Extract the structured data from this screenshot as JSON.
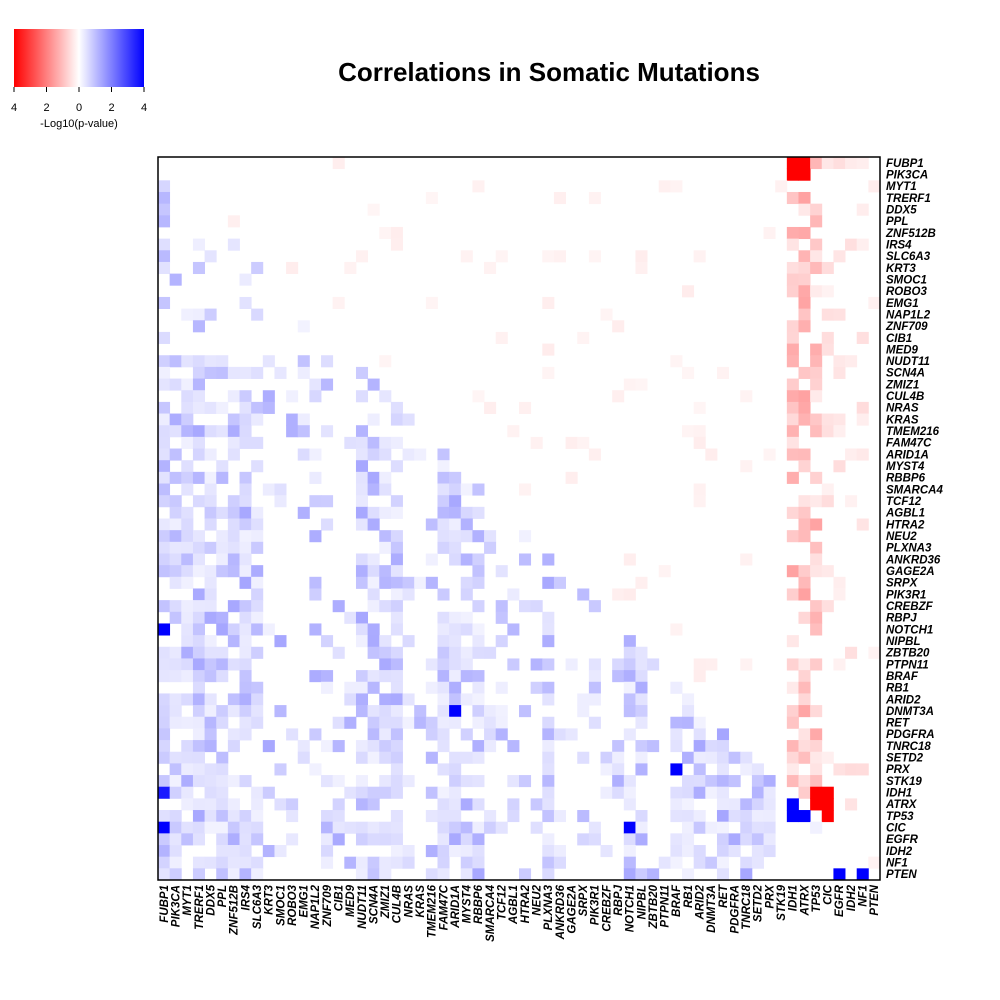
{
  "chart_data": {
    "type": "heatmap",
    "title": "Correlations in Somatic Mutations",
    "legend": {
      "title": "-Log10(p-value)",
      "ticks": [
        "4",
        "2",
        "0",
        "2",
        "4"
      ],
      "range": [
        -4,
        4
      ],
      "low_color": "#ff0000",
      "mid_color": "#ffffff",
      "high_color": "#0000ff",
      "placement": "top-left"
    },
    "genes": [
      "FUBP1",
      "PIK3CA",
      "MYT1",
      "TRERF1",
      "DDX5",
      "PPL",
      "ZNF512B",
      "IRS4",
      "SLC6A3",
      "KRT3",
      "SMOC1",
      "ROBO3",
      "EMG1",
      "NAP1L2",
      "ZNF709",
      "CIB1",
      "MED9",
      "NUDT11",
      "SCN4A",
      "ZMIZ1",
      "CUL4B",
      "NRAS",
      "KRAS",
      "TMEM216",
      "FAM47C",
      "ARID1A",
      "MYST4",
      "RBBP6",
      "SMARCA4",
      "TCF12",
      "AGBL1",
      "HTRA2",
      "NEU2",
      "PLXNA3",
      "ANKRD36",
      "GAGE2A",
      "SRPX",
      "PIK3R1",
      "CREBZF",
      "RBPJ",
      "NOTCH1",
      "NIPBL",
      "ZBTB20",
      "PTPN11",
      "BRAF",
      "RB1",
      "ARID2",
      "DNMT3A",
      "RET",
      "PDGFRA",
      "TNRC18",
      "SETD2",
      "PRX",
      "STK19",
      "IDH1",
      "ATRX",
      "TP53",
      "CIC",
      "EGFR",
      "IDH2",
      "NF1",
      "PTEN"
    ],
    "x_tick_labels": [
      "FUBP1",
      "PIK3CA",
      "MYT1",
      "TRERF1",
      "DDX5",
      "PPL",
      "ZNF512B",
      "IRS4",
      "SLC6A3",
      "KRT3",
      "SMOC1",
      "ROBO3",
      "EMG1",
      "NAP1L2",
      "ZNF709",
      "CIB1",
      "MED9",
      "NUDT11",
      "SCN4A",
      "ZMIZ1",
      "CUL4B",
      "NRAS",
      "KRAS",
      "TMEM216",
      "FAM47C",
      "ARID1A",
      "MYST4",
      "RBBP6",
      "SMARCA4",
      "TCF12",
      "AGBL1",
      "HTRA2",
      "NEU2",
      "PLXNA3",
      "ANKRD36",
      "GAGE2A",
      "SRPX",
      "PIK3R1",
      "CREBZF",
      "RBPJ",
      "NOTCH1",
      "NIPBL",
      "ZBTB20",
      "PTPN11",
      "BRAF",
      "RB1",
      "ARID2",
      "DNMT3A",
      "RET",
      "PDGFRA",
      "TNRC18",
      "SETD2",
      "PRX",
      "STK19",
      "IDH1",
      "ATRX",
      "TP53",
      "CIC",
      "EGFR",
      "IDH2",
      "NF1",
      "PTEN"
    ],
    "y_tick_labels": [
      "FUBP1",
      "PIK3CA",
      "MYT1",
      "TRERF1",
      "DDX5",
      "PPL",
      "ZNF512B",
      "IRS4",
      "SLC6A3",
      "KRT3",
      "SMOC1",
      "ROBO3",
      "EMG1",
      "NAP1L2",
      "ZNF709",
      "CIB1",
      "MED9",
      "NUDT11",
      "SCN4A",
      "ZMIZ1",
      "CUL4B",
      "NRAS",
      "KRAS",
      "TMEM216",
      "FAM47C",
      "ARID1A",
      "MYST4",
      "RBBP6",
      "SMARCA4",
      "TCF12",
      "AGBL1",
      "HTRA2",
      "NEU2",
      "PLXNA3",
      "ANKRD36",
      "GAGE2A",
      "SRPX",
      "PIK3R1",
      "CREBZF",
      "RBPJ",
      "NOTCH1",
      "NIPBL",
      "ZBTB20",
      "PTPN11",
      "BRAF",
      "RB1",
      "ARID2",
      "DNMT3A",
      "RET",
      "PDGFRA",
      "TNRC18",
      "SETD2",
      "PRX",
      "STK19",
      "IDH1",
      "ATRX",
      "TP53",
      "CIC",
      "EGFR",
      "IDH2",
      "NF1",
      "PTEN"
    ],
    "strong_cells": [
      {
        "row": "PIK3CA",
        "col": "IDH1",
        "value": -4
      },
      {
        "row": "PIK3CA",
        "col": "ATRX",
        "value": -4
      },
      {
        "row": "FUBP1",
        "col": "IDH1",
        "value": -4
      },
      {
        "row": "FUBP1",
        "col": "ATRX",
        "value": -4
      },
      {
        "row": "IDH1",
        "col": "TP53",
        "value": -4
      },
      {
        "row": "IDH1",
        "col": "CIC",
        "value": -4
      },
      {
        "row": "ATRX",
        "col": "TP53",
        "value": -4
      },
      {
        "row": "ATRX",
        "col": "CIC",
        "value": -4
      },
      {
        "row": "TP53",
        "col": "CIC",
        "value": -4
      },
      {
        "row": "ATRX",
        "col": "IDH1",
        "value": 4
      },
      {
        "row": "TP53",
        "col": "IDH1",
        "value": 4
      },
      {
        "row": "TP53",
        "col": "ATRX",
        "value": 4
      },
      {
        "row": "CIC",
        "col": "FUBP1",
        "value": 4
      },
      {
        "row": "CIC",
        "col": "NOTCH1",
        "value": 4
      },
      {
        "row": "NOTCH1",
        "col": "FUBP1",
        "value": 4
      },
      {
        "row": "IDH1",
        "col": "FUBP1",
        "value": 3.6
      },
      {
        "row": "PTEN",
        "col": "EGFR",
        "value": 4
      },
      {
        "row": "PTEN",
        "col": "NF1",
        "value": 4
      },
      {
        "row": "DNMT3A",
        "col": "ARID1A",
        "value": 4
      },
      {
        "row": "PRX",
        "col": "BRAF",
        "value": 4
      }
    ]
  }
}
